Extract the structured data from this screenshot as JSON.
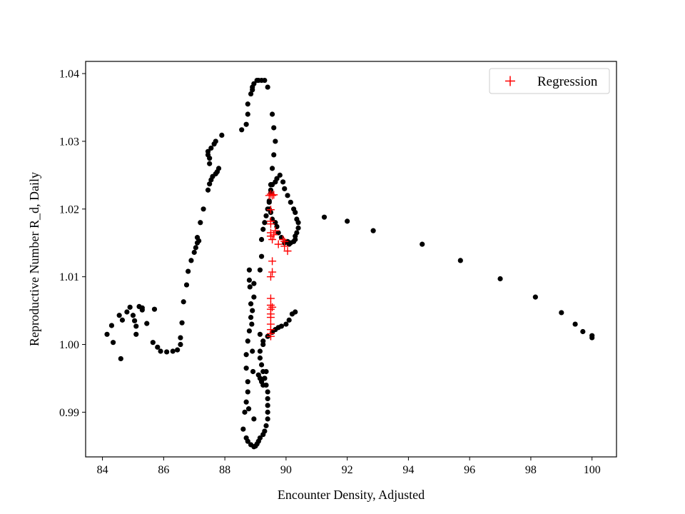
{
  "chart_data": {
    "type": "scatter",
    "title": "",
    "xlabel": "Encounter Density, Adjusted",
    "ylabel": "Reproductive Number R_d, Daily",
    "xlim": [
      83.45,
      100.8
    ],
    "ylim": [
      0.9834,
      1.0418
    ],
    "xticks": [
      84,
      86,
      88,
      90,
      92,
      94,
      96,
      98,
      100
    ],
    "yticks": [
      0.99,
      1.0,
      1.01,
      1.02,
      1.03,
      1.04
    ],
    "grid": false,
    "legend_position": "top-right",
    "colors": {
      "data": "#000000",
      "regression": "#ff0000"
    },
    "legend": [
      {
        "label": "Regression",
        "marker": "plus",
        "color": "#ff0000"
      }
    ],
    "series": [
      {
        "role": "data",
        "marker": "circle",
        "x": [
          84.15,
          84.3,
          84.35,
          84.55,
          84.65,
          84.6,
          84.8,
          84.9,
          85.0,
          85.05,
          85.1,
          85.1,
          85.2,
          85.3,
          85.3,
          85.45,
          85.7,
          85.65,
          85.8,
          85.9,
          86.1,
          86.3,
          86.45,
          86.55,
          86.55,
          86.6,
          86.65,
          86.75,
          86.8,
          86.9,
          87.0,
          87.05,
          87.1,
          87.1,
          87.15,
          87.2,
          87.3,
          87.45,
          87.5,
          87.55,
          87.6,
          87.7,
          87.75,
          87.8,
          87.5,
          87.5,
          87.45,
          87.45,
          87.55,
          87.65,
          87.7,
          87.9,
          88.55,
          88.7,
          88.75,
          88.75,
          88.85,
          88.9,
          88.9,
          88.95,
          89.05,
          89.1,
          89.2,
          89.3,
          89.4,
          89.55,
          89.6,
          89.65,
          89.6,
          89.55,
          89.5,
          89.5,
          89.45,
          89.45,
          89.5,
          89.55,
          89.65,
          89.7,
          89.75,
          89.85,
          89.95,
          90.05,
          90.1,
          90.15,
          90.25,
          90.3,
          90.3,
          90.35,
          90.4,
          90.4,
          90.35,
          90.3,
          90.25,
          90.15,
          90.05,
          89.95,
          89.9,
          89.8,
          89.7,
          89.65,
          89.55,
          89.5,
          89.45,
          89.4,
          89.35,
          89.3,
          89.25,
          89.2,
          89.2,
          89.15,
          88.8,
          88.95,
          88.95,
          88.9,
          88.85,
          88.8,
          88.75,
          88.7,
          88.7,
          88.75,
          88.75,
          88.7,
          88.65,
          88.6,
          88.7,
          88.75,
          88.85,
          88.95,
          89.0,
          89.05,
          89.1,
          89.15,
          89.25,
          89.3,
          89.35,
          89.4,
          89.4,
          89.4,
          89.4,
          89.4,
          89.35,
          89.3,
          89.25,
          89.2,
          89.15,
          89.15,
          89.25,
          89.4,
          89.55,
          89.65,
          89.75,
          89.85,
          90.0,
          90.1,
          90.2,
          90.3,
          91.25,
          92.0,
          92.85,
          94.45,
          95.7,
          97.0,
          98.15,
          99.0,
          99.45,
          99.7,
          100.0,
          100.0,
          88.8,
          88.82,
          88.85,
          88.88,
          88.9,
          88.92,
          88.95,
          88.78,
          89.1,
          89.15,
          89.2,
          89.25,
          89.3,
          89.35,
          89.25,
          89.15
        ],
        "y": [
          1.0015,
          1.0028,
          1.0003,
          1.0043,
          1.0036,
          0.9979,
          1.0048,
          1.0055,
          1.0043,
          1.0035,
          1.0027,
          1.0015,
          1.0056,
          1.0054,
          1.0051,
          1.0031,
          1.0052,
          1.0003,
          0.9996,
          0.999,
          0.9989,
          0.999,
          0.9992,
          1.0,
          1.001,
          1.0032,
          1.0063,
          1.0088,
          1.0108,
          1.0124,
          1.0136,
          1.0143,
          1.015,
          1.0158,
          1.0153,
          1.018,
          1.02,
          1.0228,
          1.0237,
          1.0243,
          1.0248,
          1.0252,
          1.0255,
          1.026,
          1.0267,
          1.0275,
          1.028,
          1.0285,
          1.029,
          1.0296,
          1.03,
          1.0309,
          1.0317,
          1.0325,
          1.034,
          1.0355,
          1.037,
          1.0376,
          1.038,
          1.0385,
          1.039,
          1.039,
          1.039,
          1.039,
          1.038,
          1.034,
          1.032,
          1.03,
          1.028,
          1.026,
          1.0236,
          1.0224,
          1.0212,
          1.02,
          1.0195,
          1.0185,
          1.018,
          1.0174,
          1.0165,
          1.0158,
          1.015,
          1.0152,
          1.0148,
          1.015,
          1.0152,
          1.0155,
          1.016,
          1.0165,
          1.0172,
          1.018,
          1.0185,
          1.0195,
          1.02,
          1.021,
          1.022,
          1.023,
          1.024,
          1.025,
          1.0245,
          1.024,
          1.0236,
          1.0228,
          1.021,
          1.02,
          1.019,
          1.018,
          1.017,
          1.0155,
          1.013,
          1.011,
          1.0095,
          1.009,
          1.007,
          1.005,
          1.004,
          1.002,
          1.0005,
          0.9985,
          0.9965,
          0.9945,
          0.993,
          0.9915,
          0.99,
          0.9875,
          0.9862,
          0.9857,
          0.9852,
          0.9849,
          0.985,
          0.9853,
          0.9857,
          0.9862,
          0.9867,
          0.9872,
          0.988,
          0.989,
          0.99,
          0.991,
          0.992,
          0.993,
          0.994,
          0.995,
          0.996,
          0.997,
          0.998,
          0.999,
          1.0,
          1.0012,
          1.0018,
          1.0022,
          1.0025,
          1.0027,
          1.003,
          1.0036,
          1.0045,
          1.0048,
          1.0188,
          1.0182,
          1.0168,
          1.0148,
          1.0124,
          1.0097,
          1.007,
          1.0047,
          1.003,
          1.0019,
          1.0013,
          1.001,
          1.011,
          1.0085,
          1.006,
          1.003,
          0.999,
          0.996,
          0.989,
          0.9905,
          0.9955,
          0.995,
          0.9945,
          0.994,
          0.995,
          0.996,
          1.0005,
          1.0015
        ]
      },
      {
        "role": "regression",
        "name": "Regression",
        "marker": "plus",
        "x": [
          89.5,
          89.5,
          89.5,
          89.5,
          89.5,
          89.5,
          89.5,
          89.5,
          89.55,
          89.5,
          89.5,
          89.55,
          89.5,
          89.5,
          89.5,
          89.5,
          89.55,
          89.6,
          89.65,
          89.75,
          89.9,
          89.95,
          89.95,
          90.05,
          89.45,
          89.5,
          89.55,
          89.6,
          89.5,
          89.55
        ],
        "y": [
          1.0012,
          1.0016,
          1.0022,
          1.003,
          1.004,
          1.0045,
          1.0052,
          1.0058,
          1.0055,
          1.0068,
          1.01,
          1.0107,
          1.016,
          1.0165,
          1.0178,
          1.0182,
          1.0155,
          1.0162,
          1.0168,
          1.0148,
          1.0155,
          1.0152,
          1.0145,
          1.0138,
          1.022,
          1.0222,
          1.022,
          1.0221,
          1.0199,
          1.0123
        ]
      }
    ]
  }
}
